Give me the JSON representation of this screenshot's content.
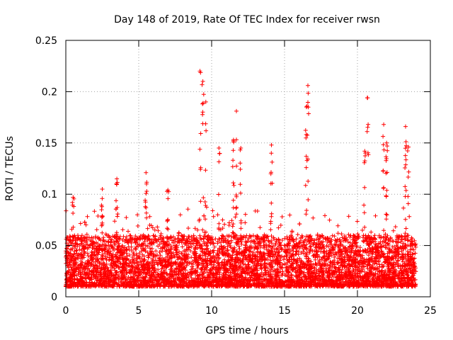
{
  "chart_data": {
    "type": "scatter",
    "title": "Day 148 of 2019, Rate Of TEC Index for receiver rwsn",
    "xlabel": "GPS time / hours",
    "ylabel": "ROTI / TECUs",
    "xlim": [
      0,
      25
    ],
    "ylim": [
      0,
      0.25
    ],
    "grid": true,
    "marker": "+",
    "color": "#ff0000",
    "x_ticks": [
      0,
      5,
      10,
      15,
      20,
      25
    ],
    "x_tick_labels": [
      "0",
      "5",
      "10",
      "15",
      "20",
      "25"
    ],
    "y_ticks": [
      0,
      0.05,
      0.1,
      0.15,
      0.2,
      0.25
    ],
    "y_tick_labels": [
      "0",
      "0.05",
      "0.1",
      "0.15",
      "0.2",
      "0.25"
    ],
    "series": [
      {
        "name": "ROTI",
        "points_per_hour_estimate": 240,
        "baseline_band": [
          0.01,
          0.06
        ],
        "spikes": [
          {
            "x": 0.5,
            "y": 0.097
          },
          {
            "x": 2.5,
            "y": 0.105
          },
          {
            "x": 3.5,
            "y": 0.115
          },
          {
            "x": 5.5,
            "y": 0.121
          },
          {
            "x": 7.0,
            "y": 0.104
          },
          {
            "x": 9.2,
            "y": 0.22
          },
          {
            "x": 9.4,
            "y": 0.21
          },
          {
            "x": 9.6,
            "y": 0.19
          },
          {
            "x": 10.5,
            "y": 0.145
          },
          {
            "x": 11.7,
            "y": 0.181
          },
          {
            "x": 11.5,
            "y": 0.153
          },
          {
            "x": 12.0,
            "y": 0.145
          },
          {
            "x": 14.1,
            "y": 0.148
          },
          {
            "x": 16.6,
            "y": 0.206
          },
          {
            "x": 16.5,
            "y": 0.185
          },
          {
            "x": 20.7,
            "y": 0.194
          },
          {
            "x": 20.5,
            "y": 0.142
          },
          {
            "x": 21.8,
            "y": 0.168
          },
          {
            "x": 22.0,
            "y": 0.15
          },
          {
            "x": 23.3,
            "y": 0.166
          },
          {
            "x": 23.5,
            "y": 0.146
          }
        ]
      }
    ]
  }
}
